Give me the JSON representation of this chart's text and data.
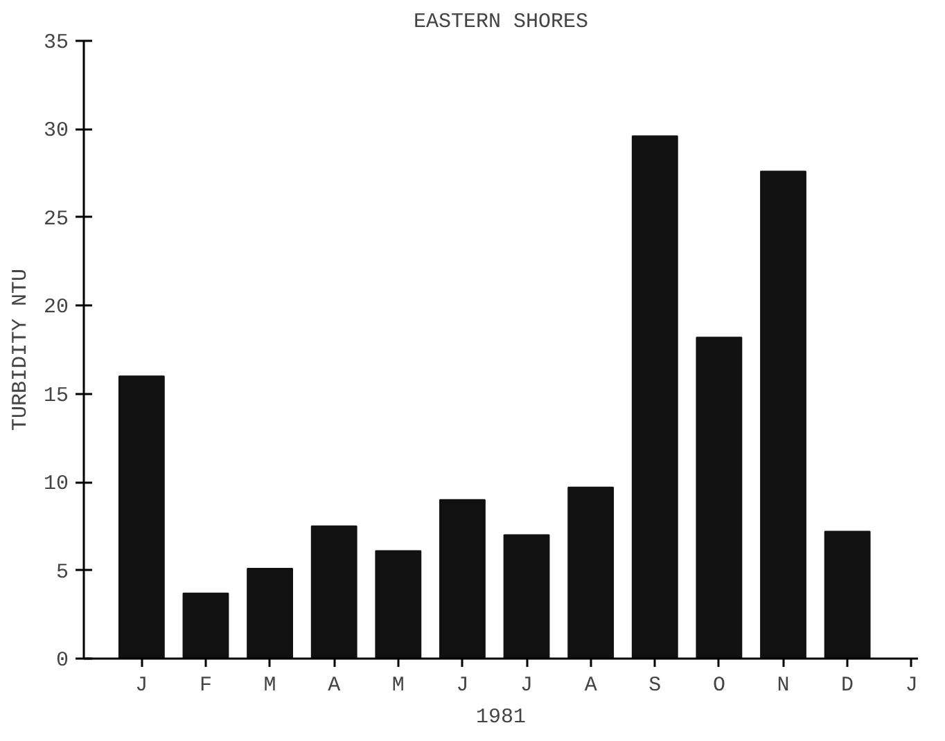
{
  "chart_data": {
    "type": "bar",
    "title": "EASTERN SHORES",
    "xlabel": "1981",
    "ylabel": "TURBIDITY NTU",
    "categories": [
      "J",
      "F",
      "M",
      "A",
      "M",
      "J",
      "J",
      "A",
      "S",
      "O",
      "N",
      "D",
      "J"
    ],
    "values": [
      16,
      3.7,
      5.1,
      7.5,
      6.1,
      9.0,
      7.0,
      9.7,
      29.6,
      18.2,
      27.6,
      7.2,
      null
    ],
    "color": "#111111",
    "ylim": [
      0,
      35
    ],
    "yticks": [
      0,
      5,
      10,
      15,
      20,
      25,
      30,
      35
    ],
    "grid": false
  }
}
